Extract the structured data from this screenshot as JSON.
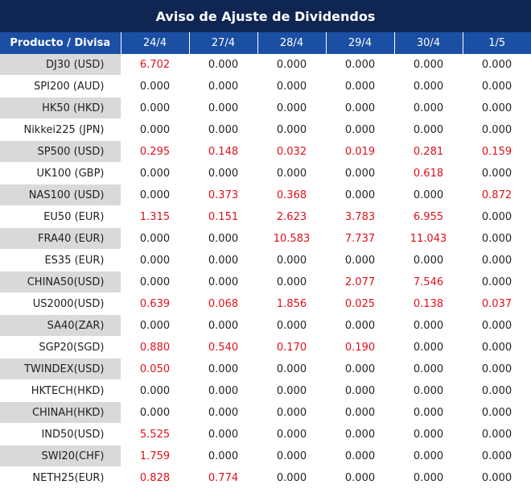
{
  "title": "Aviso de Ajuste de Dividendos",
  "header": {
    "product_label": "Producto / Divisa",
    "dates": [
      "24/4",
      "27/4",
      "28/4",
      "29/4",
      "30/4",
      "1/5"
    ]
  },
  "colors": {
    "title_bg": "#0f2552",
    "header_bg": "#1a4fa3",
    "alt_row_bg": "#d9d9d9",
    "positive_value": "#e0101a",
    "zero_value": "#222222"
  },
  "rows": [
    {
      "name": "DJ30 (USD)",
      "values": [
        "6.702",
        "0.000",
        "0.000",
        "0.000",
        "0.000",
        "0.000"
      ]
    },
    {
      "name": "SPI200 (AUD)",
      "values": [
        "0.000",
        "0.000",
        "0.000",
        "0.000",
        "0.000",
        "0.000"
      ]
    },
    {
      "name": "HK50 (HKD)",
      "values": [
        "0.000",
        "0.000",
        "0.000",
        "0.000",
        "0.000",
        "0.000"
      ]
    },
    {
      "name": "Nikkei225 (JPN)",
      "values": [
        "0.000",
        "0.000",
        "0.000",
        "0.000",
        "0.000",
        "0.000"
      ]
    },
    {
      "name": "SP500 (USD)",
      "values": [
        "0.295",
        "0.148",
        "0.032",
        "0.019",
        "0.281",
        "0.159"
      ]
    },
    {
      "name": "UK100 (GBP)",
      "values": [
        "0.000",
        "0.000",
        "0.000",
        "0.000",
        "0.618",
        "0.000"
      ]
    },
    {
      "name": "NAS100 (USD)",
      "values": [
        "0.000",
        "0.373",
        "0.368",
        "0.000",
        "0.000",
        "0.872"
      ]
    },
    {
      "name": "EU50 (EUR)",
      "values": [
        "1.315",
        "0.151",
        "2.623",
        "3.783",
        "6.955",
        "0.000"
      ]
    },
    {
      "name": "FRA40 (EUR)",
      "values": [
        "0.000",
        "0.000",
        "10.583",
        "7.737",
        "11.043",
        "0.000"
      ]
    },
    {
      "name": "ES35 (EUR)",
      "values": [
        "0.000",
        "0.000",
        "0.000",
        "0.000",
        "0.000",
        "0.000"
      ]
    },
    {
      "name": "CHINA50(USD)",
      "values": [
        "0.000",
        "0.000",
        "0.000",
        "2.077",
        "7.546",
        "0.000"
      ]
    },
    {
      "name": "US2000(USD)",
      "values": [
        "0.639",
        "0.068",
        "1.856",
        "0.025",
        "0.138",
        "0.037"
      ]
    },
    {
      "name": "SA40(ZAR)",
      "values": [
        "0.000",
        "0.000",
        "0.000",
        "0.000",
        "0.000",
        "0.000"
      ]
    },
    {
      "name": "SGP20(SGD)",
      "values": [
        "0.880",
        "0.540",
        "0.170",
        "0.190",
        "0.000",
        "0.000"
      ]
    },
    {
      "name": "TWINDEX(USD)",
      "values": [
        "0.050",
        "0.000",
        "0.000",
        "0.000",
        "0.000",
        "0.000"
      ]
    },
    {
      "name": "HKTECH(HKD)",
      "values": [
        "0.000",
        "0.000",
        "0.000",
        "0.000",
        "0.000",
        "0.000"
      ]
    },
    {
      "name": "CHINAH(HKD)",
      "values": [
        "0.000",
        "0.000",
        "0.000",
        "0.000",
        "0.000",
        "0.000"
      ]
    },
    {
      "name": "IND50(USD)",
      "values": [
        "5.525",
        "0.000",
        "0.000",
        "0.000",
        "0.000",
        "0.000"
      ]
    },
    {
      "name": "SWI20(CHF)",
      "values": [
        "1.759",
        "0.000",
        "0.000",
        "0.000",
        "0.000",
        "0.000"
      ]
    },
    {
      "name": "NETH25(EUR)",
      "values": [
        "0.828",
        "0.774",
        "0.000",
        "0.000",
        "0.000",
        "0.000"
      ]
    }
  ]
}
